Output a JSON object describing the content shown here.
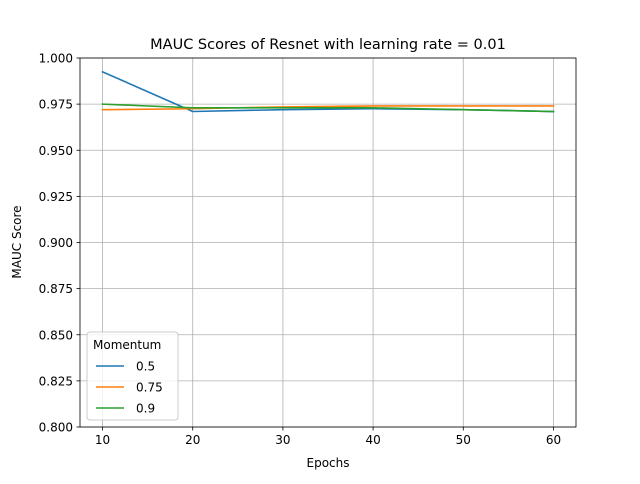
{
  "chart_data": {
    "type": "line",
    "title": "MAUC Scores of Resnet with learning rate = 0.01",
    "xlabel": "Epochs",
    "ylabel": "MAUC Score",
    "x": [
      10,
      20,
      30,
      40,
      50,
      60
    ],
    "xlim": [
      7.5,
      62.5
    ],
    "ylim": [
      0.8,
      1.0
    ],
    "xticks": [
      "10",
      "20",
      "30",
      "40",
      "50",
      "60"
    ],
    "yticks": [
      "0.800",
      "0.825",
      "0.850",
      "0.875",
      "0.900",
      "0.925",
      "0.950",
      "0.975",
      "1.000"
    ],
    "grid": true,
    "legend": {
      "title": "Momentum",
      "position": "lower-left"
    },
    "series": [
      {
        "name": "0.5",
        "color": "#1f77b4",
        "values": [
          0.9925,
          0.971,
          0.972,
          0.9725,
          0.972,
          0.971
        ]
      },
      {
        "name": "0.75",
        "color": "#ff7f0e",
        "values": [
          0.972,
          0.9725,
          0.9735,
          0.974,
          0.974,
          0.974
        ]
      },
      {
        "name": "0.9",
        "color": "#2ca02c",
        "values": [
          0.975,
          0.973,
          0.973,
          0.973,
          0.972,
          0.971
        ]
      }
    ]
  }
}
